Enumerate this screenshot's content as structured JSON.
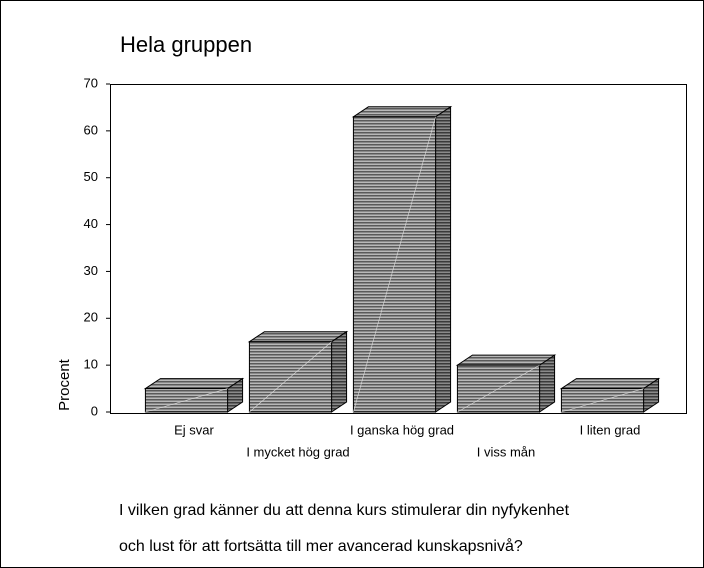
{
  "chart_data": {
    "type": "bar",
    "title": "Hela gruppen",
    "ylabel": "Procent",
    "categories": [
      "Ej svar",
      "I mycket hög grad",
      "I ganska hög grad",
      "I viss mån",
      "I liten grad"
    ],
    "values": [
      5,
      15,
      63,
      10,
      5
    ],
    "color": "#8c8c8c",
    "ylim": [
      0,
      70
    ],
    "yticks": [
      0,
      10,
      20,
      30,
      40,
      50,
      60,
      70
    ],
    "caption": [
      "I vilken grad känner du att denna kurs stimulerar din nyfykenhet",
      "och lust för att fortsätta till mer avancerad kunskapsnivå?"
    ]
  }
}
